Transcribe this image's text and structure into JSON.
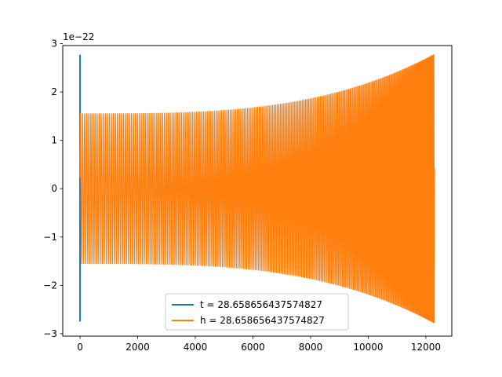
{
  "chart_data": {
    "type": "line",
    "title": "",
    "xlabel": "",
    "ylabel": "",
    "y_offset_label": "1e−22",
    "y_scale": 1e-22,
    "xlim": [
      -600,
      12900
    ],
    "ylim": [
      -3.05,
      2.96
    ],
    "x_ticks": [
      0,
      2000,
      4000,
      6000,
      8000,
      10000,
      12000
    ],
    "x_tick_labels": [
      "0",
      "2000",
      "4000",
      "6000",
      "8000",
      "10000",
      "12000"
    ],
    "y_ticks": [
      -3,
      -2,
      -1,
      0,
      1,
      2,
      3
    ],
    "y_tick_labels": [
      "−3",
      "−2",
      "−1",
      "0",
      "1",
      "2",
      "3"
    ],
    "grid": false,
    "legend_position": "lower-center",
    "series": [
      {
        "name": "t = 28.658656437574827",
        "color": "#1f77b4",
        "x": [
          0,
          0,
          0,
          0
        ],
        "y": [
          0.0,
          2.77,
          -2.75,
          0.0
        ]
      },
      {
        "name": "h = 28.658656437574827",
        "color": "#ff7f0e",
        "shape": "chirp",
        "x_range": [
          0,
          12300
        ],
        "amplitude_start": 1.55,
        "amplitude_end": 2.78,
        "cycles": 230
      }
    ]
  }
}
